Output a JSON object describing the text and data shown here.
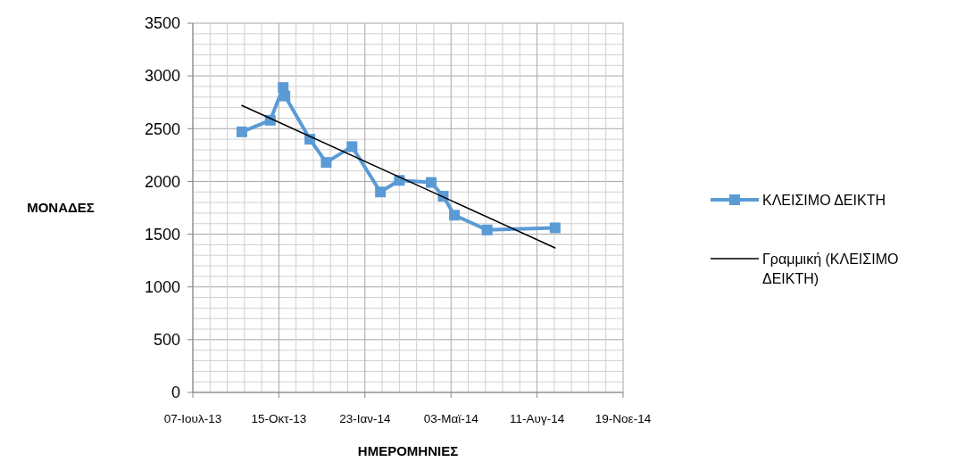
{
  "chart_data": {
    "type": "line",
    "xlabel": "ΗΜΕΡΟΜΗΝΙΕΣ",
    "ylabel": "ΜΟΝΑΔΕΣ",
    "xlim": [
      "2013-07-07",
      "2014-11-19"
    ],
    "xticks": [
      {
        "value": "2013-07-07",
        "label": "07-Ιουλ-13"
      },
      {
        "value": "2013-10-15",
        "label": "15-Οκτ-13"
      },
      {
        "value": "2014-01-23",
        "label": "23-Ιαν-14"
      },
      {
        "value": "2014-05-03",
        "label": "03-Μαϊ-14"
      },
      {
        "value": "2014-08-11",
        "label": "11-Αυγ-14"
      },
      {
        "value": "2014-11-19",
        "label": "19-Νοε-14"
      }
    ],
    "ylim": [
      0,
      3500
    ],
    "yticks": [
      0,
      500,
      1000,
      1500,
      2000,
      2500,
      3000,
      3500
    ],
    "grid": true,
    "legend": "right",
    "series": [
      {
        "name": "ΚΛΕΙΣΙΜΟ ΔΕΙΚΤΗ",
        "color": "#5b9bd5",
        "marker": "square",
        "x": [
          "2013-09-02",
          "2013-10-05",
          "2013-10-20",
          "2013-10-22",
          "2013-11-20",
          "2013-12-09",
          "2014-01-08",
          "2014-02-10",
          "2014-03-04",
          "2014-04-10",
          "2014-04-24",
          "2014-05-07",
          "2014-06-14",
          "2014-09-01"
        ],
        "values": [
          2470,
          2580,
          2890,
          2810,
          2400,
          2180,
          2330,
          1900,
          2010,
          1990,
          1860,
          1680,
          1540,
          1560
        ]
      },
      {
        "name": "Γραμμική (ΚΛΕΙΣΙΜΟ ΔΕΙΚΤΗ)",
        "color": "#000000",
        "marker": "none",
        "x": [
          "2013-09-02",
          "2014-09-01"
        ],
        "values": [
          2720,
          1370
        ]
      }
    ]
  }
}
